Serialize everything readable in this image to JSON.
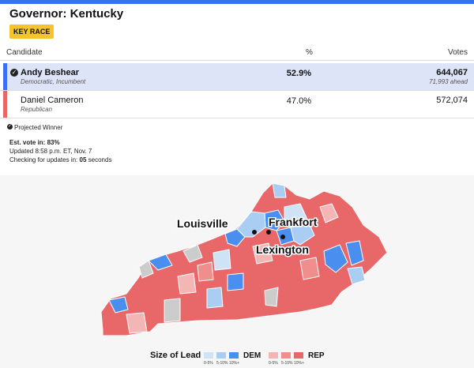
{
  "header": {
    "title": "Governor: Kentucky",
    "badge": "KEY RACE"
  },
  "table": {
    "columns": [
      "Candidate",
      "%",
      "Votes"
    ],
    "rows": [
      {
        "name": "Andy Beshear",
        "party": "Democratic, Incumbent",
        "pct": "52.9%",
        "votes": "644,067",
        "ahead": "71,993 ahead"
      },
      {
        "name": "Daniel Cameron",
        "party": "Republican",
        "pct": "47.0%",
        "votes": "572,074"
      }
    ]
  },
  "status": {
    "projected": "Projected Winner",
    "est_vote": "Est. vote in: 83%",
    "updated": "Updated 8:58 p.m. ET, Nov. 7",
    "checking": {
      "label": "Checking for updates in:",
      "value": "05",
      "unit": "seconds"
    }
  },
  "map": {
    "cities": [
      "Louisville",
      "Frankfort",
      "Lexington"
    ]
  },
  "legend": {
    "title": "Size of Lead",
    "dem": {
      "label": "DEM",
      "steps": [
        "0-5%",
        "5-10%",
        "10%+"
      ]
    },
    "rep": {
      "label": "REP",
      "steps": [
        "0-5%",
        "5-10%",
        "10%+"
      ]
    }
  }
}
